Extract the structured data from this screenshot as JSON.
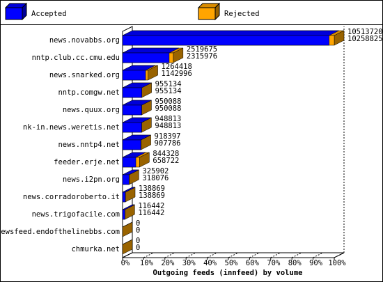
{
  "chart_data": {
    "type": "bar3d-overlap",
    "x_label": "Outgoing feeds (innfeed) by volume",
    "categories": [
      "news.novabbs.org",
      "nntp.club.cc.cmu.edu",
      "news.snarked.org",
      "nntp.comgw.net",
      "news.quux.org",
      "nk-in.news.weretis.net",
      "news.nntp4.net",
      "feeder.erje.net",
      "news.i2pn.org",
      "news.corradoroberto.it",
      "news.trigofacile.com",
      "newsfeed.endofthelinebbs.com",
      "chmurka.net"
    ],
    "series": [
      {
        "name": "Rejected",
        "color": "#ffa500",
        "values": [
          10513720,
          2519675,
          1264418,
          955134,
          950088,
          948813,
          918397,
          844328,
          325902,
          138869,
          116442,
          0,
          0
        ]
      },
      {
        "name": "Accepted",
        "color": "#0000ff",
        "values": [
          10258825,
          2315976,
          1142996,
          955134,
          950088,
          948813,
          907786,
          658722,
          318076,
          138869,
          116442,
          0,
          0
        ]
      }
    ],
    "legend_order": [
      1,
      0
    ],
    "xlim": [
      0,
      10513720
    ],
    "xticks": [
      {
        "value": 0,
        "label": "0%"
      },
      {
        "value": 1051372,
        "label": "10%"
      },
      {
        "value": 2102744,
        "label": "20%"
      },
      {
        "value": 3154116,
        "label": "30%"
      },
      {
        "value": 4205488,
        "label": "40%"
      },
      {
        "value": 5256860,
        "label": "50%"
      },
      {
        "value": 6308232,
        "label": "60%"
      },
      {
        "value": 7359604,
        "label": "70%"
      },
      {
        "value": 8410976,
        "label": "80%"
      },
      {
        "value": 9462348,
        "label": "90%"
      },
      {
        "value": 10513720,
        "label": "100%"
      }
    ]
  }
}
